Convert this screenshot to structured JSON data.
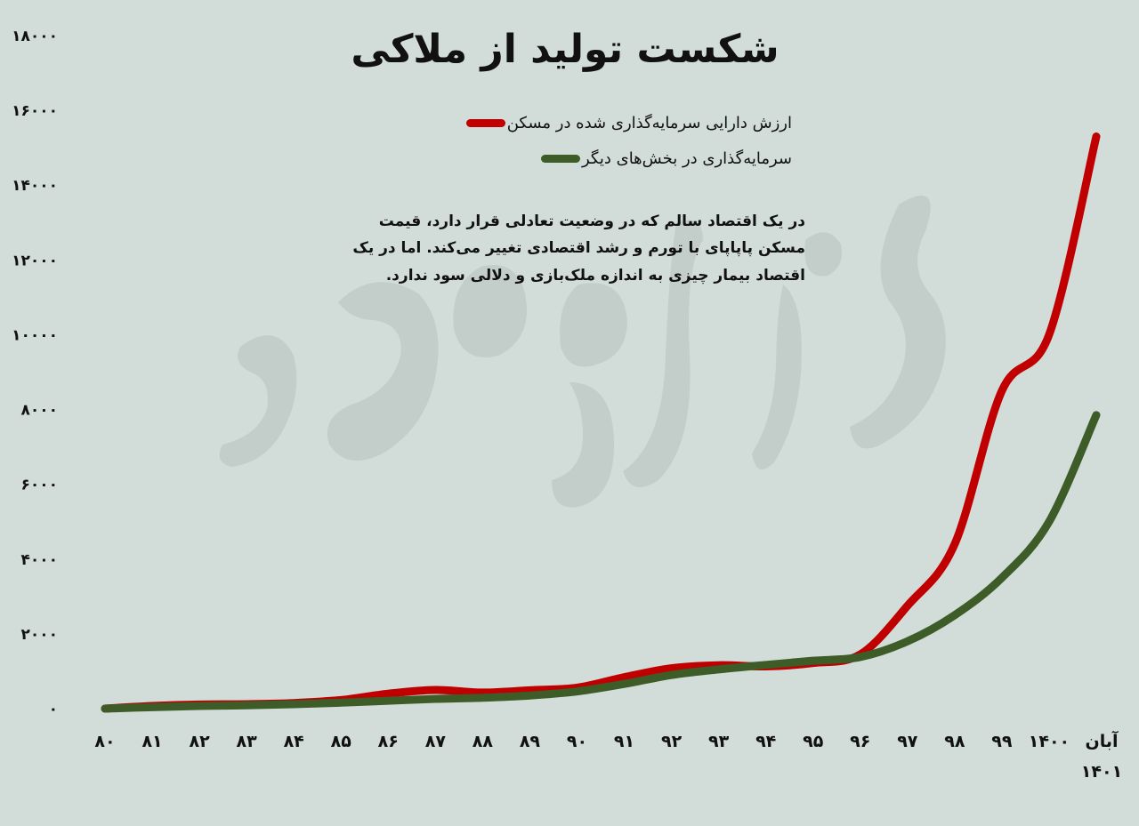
{
  "chart_data": {
    "type": "line",
    "title": "شکست تولید از ملاکی",
    "annotation": "در یک اقتصاد سالم که در وضعیت تعادلی قرار دارد، قیمت مسکن پاپاپای با تورم و رشد اقتصادی تغییر می‌کند. اما در یک اقتصاد بیمار چیزی به اندازه ملک‌بازی و دلالی سود ندارد.",
    "x": [
      "۸۰",
      "۸۱",
      "۸۲",
      "۸۳",
      "۸۴",
      "۸۵",
      "۸۶",
      "۸۷",
      "۸۸",
      "۸۹",
      "۹۰",
      "۹۱",
      "۹۲",
      "۹۳",
      "۹۴",
      "۹۵",
      "۹۶",
      "۹۷",
      "۹۸",
      "۹۹",
      "۱۴۰۰",
      "آبان ۱۴۰۱"
    ],
    "ylim": [
      0,
      18000
    ],
    "yticks": [
      "۰",
      "۲۰۰۰",
      "۴۰۰۰",
      "۶۰۰۰",
      "۸۰۰۰",
      "۱۰۰۰۰",
      "۱۲۰۰۰",
      "۱۴۰۰۰",
      "۱۶۰۰۰",
      "۱۸۰۰۰"
    ],
    "ytick_values": [
      0,
      2000,
      4000,
      6000,
      8000,
      10000,
      12000,
      14000,
      16000,
      18000
    ],
    "grid": false,
    "legend_position": "top-center",
    "series": [
      {
        "name": "ارزش دارایی سرمایه‌گذاری شده در مسکن",
        "color": "#c00000",
        "values": [
          0,
          70,
          110,
          120,
          150,
          230,
          400,
          500,
          430,
          490,
          560,
          840,
          1080,
          1160,
          1130,
          1220,
          1450,
          2750,
          4400,
          8500,
          10000,
          15300
        ]
      },
      {
        "name": "سرمایه‌گذاری در بخش‌های دیگر",
        "color": "#3d5c28",
        "values": [
          0,
          40,
          70,
          90,
          120,
          160,
          210,
          260,
          290,
          350,
          460,
          660,
          900,
          1050,
          1170,
          1280,
          1380,
          1800,
          2500,
          3500,
          5000,
          7850
        ]
      }
    ]
  },
  "colors": {
    "background": "#d2dcd9",
    "watermark": "#c2ccc9"
  }
}
